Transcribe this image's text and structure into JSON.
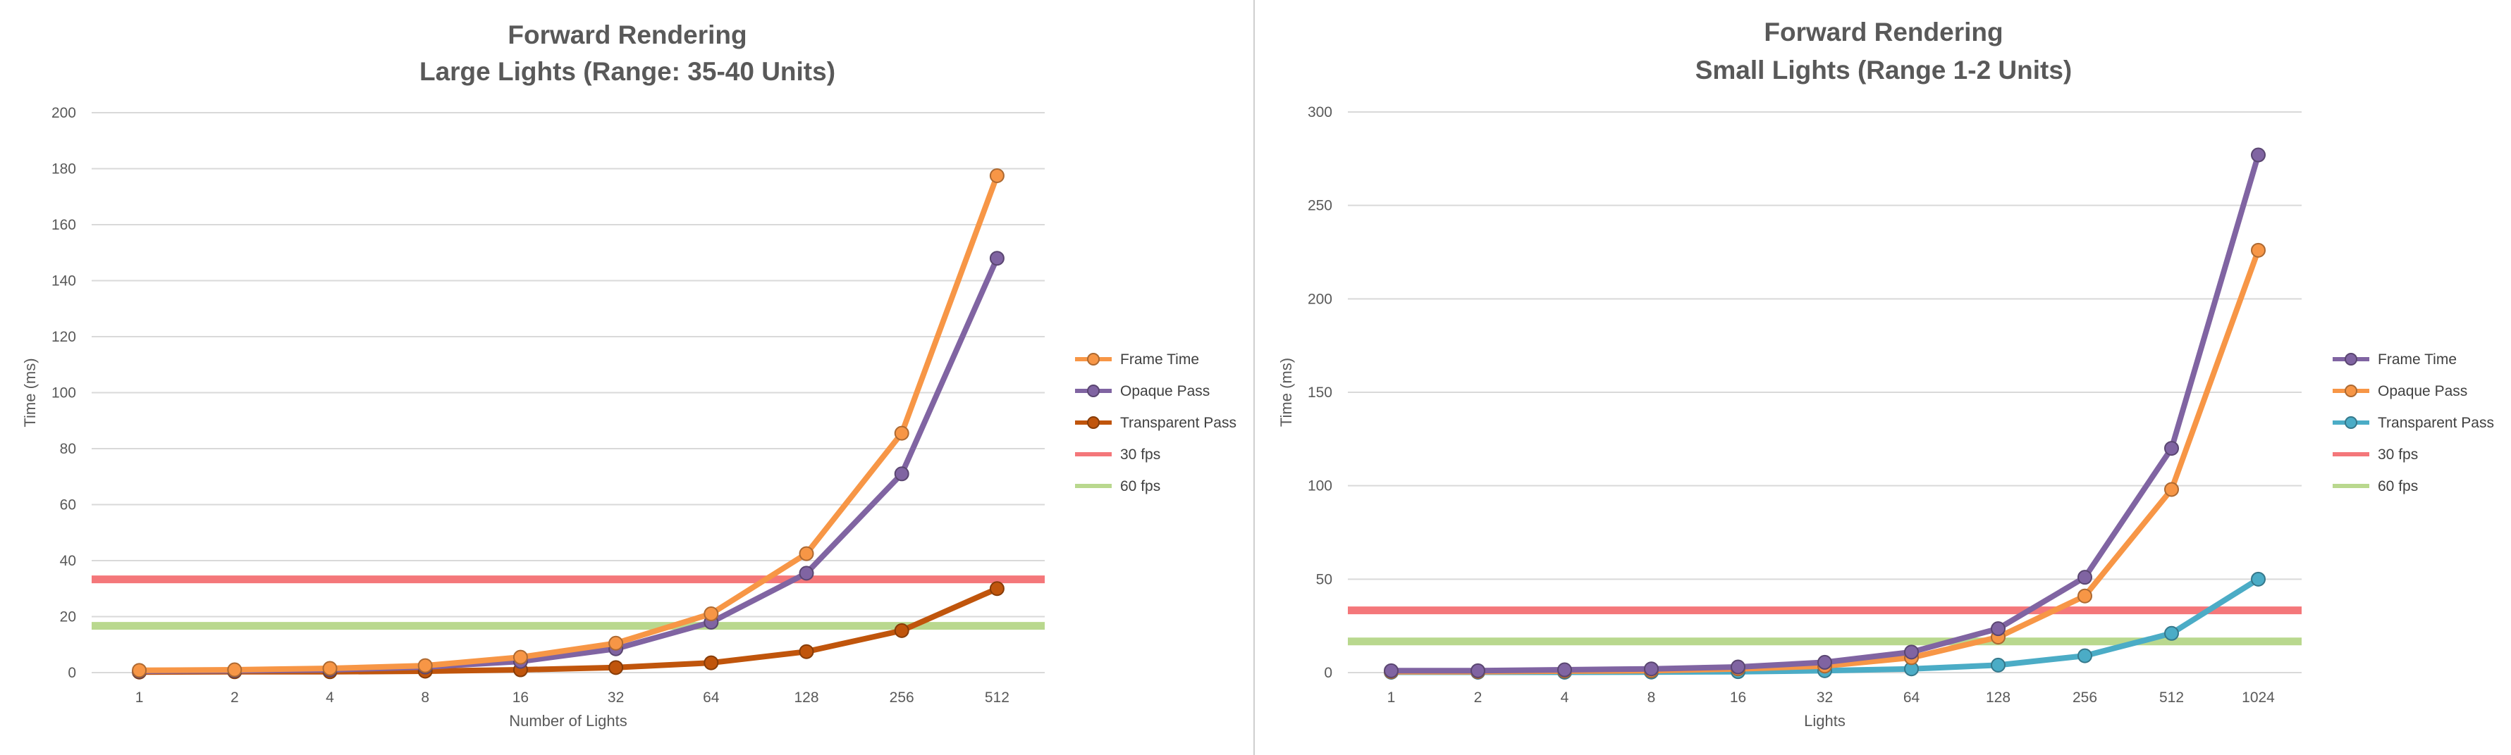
{
  "chart_data": [
    {
      "type": "line",
      "title": "Forward Rendering",
      "subtitle": "Large Lights (Range: 35-40 Units)",
      "xlabel": "Number of Lights",
      "ylabel": "Time (ms)",
      "categories": [
        "1",
        "2",
        "4",
        "8",
        "16",
        "32",
        "64",
        "128",
        "256",
        "512"
      ],
      "ylim": [
        0,
        200
      ],
      "yticks": [
        0,
        20,
        40,
        60,
        80,
        100,
        120,
        140,
        160,
        180,
        200
      ],
      "grid": true,
      "legend_position": "right",
      "series": [
        {
          "name": "Frame Time",
          "kind": "line",
          "color": "#f79646",
          "values": [
            0.8,
            1.0,
            1.5,
            2.5,
            5.5,
            10.5,
            21,
            42.5,
            85.5,
            177.5
          ]
        },
        {
          "name": "Opaque Pass",
          "kind": "line",
          "color": "#8064a2",
          "values": [
            0.5,
            0.7,
            1.0,
            2.0,
            4.0,
            8.5,
            18,
            35.5,
            71,
            148
          ]
        },
        {
          "name": "Transparent Pass",
          "kind": "line",
          "color": "#c0550c",
          "values": [
            0.2,
            0.3,
            0.3,
            0.5,
            1.0,
            1.8,
            3.5,
            7.5,
            15,
            30
          ]
        },
        {
          "name": "30 fps",
          "kind": "reference",
          "color": "#f4777a",
          "value": 33.3
        },
        {
          "name": "60 fps",
          "kind": "reference",
          "color": "#b9d88e",
          "value": 16.7
        }
      ]
    },
    {
      "type": "line",
      "title": "Forward Rendering",
      "subtitle": "Small Lights (Range 1-2 Units)",
      "xlabel": "Lights",
      "ylabel": "Time (ms)",
      "categories": [
        "1",
        "2",
        "4",
        "8",
        "16",
        "32",
        "64",
        "128",
        "256",
        "512",
        "1024"
      ],
      "ylim": [
        0,
        300
      ],
      "yticks": [
        0,
        50,
        100,
        150,
        200,
        250,
        300
      ],
      "grid": true,
      "legend_position": "right",
      "series": [
        {
          "name": "Frame Time",
          "kind": "line",
          "color": "#8064a2",
          "values": [
            1.0,
            1.0,
            1.5,
            2.0,
            3.0,
            5.5,
            11,
            23.5,
            51,
            120,
            277
          ]
        },
        {
          "name": "Opaque Pass",
          "kind": "line",
          "color": "#f79646",
          "values": [
            0.5,
            0.5,
            0.8,
            1.0,
            2.0,
            3.5,
            8,
            19,
            41,
            98,
            226
          ]
        },
        {
          "name": "Transparent Pass",
          "kind": "line",
          "color": "#4bacc6",
          "values": [
            0.2,
            0.2,
            0.2,
            0.3,
            0.5,
            1.0,
            2.0,
            4.0,
            9,
            21,
            50
          ]
        },
        {
          "name": "30 fps",
          "kind": "reference",
          "color": "#f4777a",
          "value": 33.3
        },
        {
          "name": "60 fps",
          "kind": "reference",
          "color": "#b9d88e",
          "value": 16.7
        }
      ]
    }
  ]
}
